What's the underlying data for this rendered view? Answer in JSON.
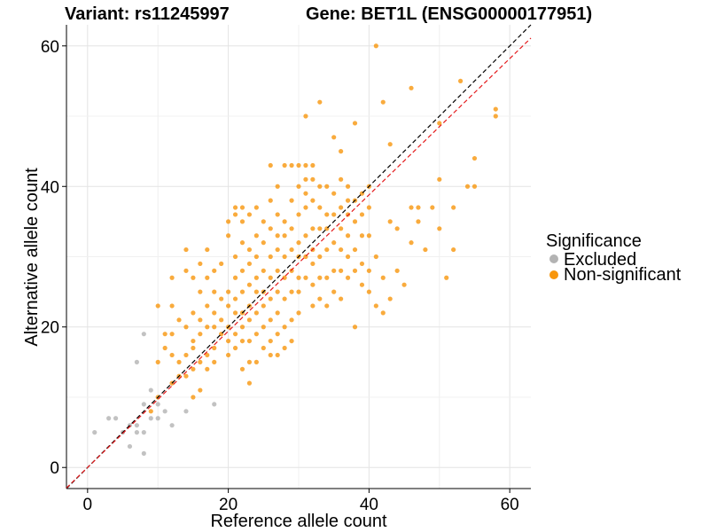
{
  "chart_data": {
    "type": "scatter",
    "title_left": "Variant: rs11245997",
    "title_right": "Gene: BET1L (ENSG00000177951)",
    "xlabel": "Reference allele count",
    "ylabel": "Alternative allele count",
    "xlim": [
      -3,
      63
    ],
    "ylim": [
      -3,
      63
    ],
    "x_ticks": [
      0,
      20,
      40,
      60
    ],
    "y_ticks": [
      0,
      20,
      40,
      60
    ],
    "grid": true,
    "legend_position": "right",
    "legend": {
      "title": "Significance",
      "entries": [
        {
          "label": "Excluded",
          "color": "#b3b3b3"
        },
        {
          "label": "Non-significant",
          "color": "#f8960c"
        }
      ]
    },
    "reference_lines": [
      {
        "name": "identity-line",
        "style": "dashed",
        "color": "#000000",
        "slope": 1.0,
        "intercept": 0
      },
      {
        "name": "fit-line",
        "style": "dashed",
        "color": "#e41a1c",
        "slope": 0.97,
        "intercept": 0
      }
    ],
    "series": [
      {
        "name": "Excluded",
        "color": "#b3b3b3",
        "points": [
          [
            1,
            5
          ],
          [
            3,
            7
          ],
          [
            4,
            7
          ],
          [
            5,
            5
          ],
          [
            6,
            3
          ],
          [
            6,
            6
          ],
          [
            7,
            5
          ],
          [
            7,
            6
          ],
          [
            7,
            15
          ],
          [
            8,
            2
          ],
          [
            8,
            5
          ],
          [
            8,
            9
          ],
          [
            8,
            19
          ],
          [
            9,
            7
          ],
          [
            9,
            11
          ],
          [
            10,
            7
          ],
          [
            10,
            9
          ],
          [
            11,
            8
          ],
          [
            12,
            6
          ],
          [
            14,
            8
          ],
          [
            18,
            9
          ]
        ]
      },
      {
        "name": "Non-significant",
        "color": "#f8960c",
        "points": [
          [
            9,
            8
          ],
          [
            10,
            10
          ],
          [
            10,
            15
          ],
          [
            10,
            23
          ],
          [
            11,
            17
          ],
          [
            11,
            19
          ],
          [
            12,
            12
          ],
          [
            12,
            16
          ],
          [
            12,
            19
          ],
          [
            12,
            23
          ],
          [
            12,
            27
          ],
          [
            13,
            13
          ],
          [
            13,
            15
          ],
          [
            13,
            21
          ],
          [
            14,
            13
          ],
          [
            14,
            16
          ],
          [
            14,
            20
          ],
          [
            14,
            28
          ],
          [
            14,
            31
          ],
          [
            15,
            10
          ],
          [
            15,
            14
          ],
          [
            15,
            17
          ],
          [
            15,
            18
          ],
          [
            15,
            22
          ],
          [
            15,
            27
          ],
          [
            16,
            11
          ],
          [
            16,
            15
          ],
          [
            16,
            19
          ],
          [
            16,
            21
          ],
          [
            16,
            25
          ],
          [
            16,
            29
          ],
          [
            17,
            14
          ],
          [
            17,
            16
          ],
          [
            17,
            20
          ],
          [
            17,
            23
          ],
          [
            17,
            27
          ],
          [
            17,
            31
          ],
          [
            18,
            15
          ],
          [
            18,
            17
          ],
          [
            18,
            20
          ],
          [
            18,
            22
          ],
          [
            18,
            25
          ],
          [
            18,
            28
          ],
          [
            19,
            19
          ],
          [
            19,
            21
          ],
          [
            19,
            24
          ],
          [
            19,
            29
          ],
          [
            20,
            16
          ],
          [
            20,
            18
          ],
          [
            20,
            20
          ],
          [
            20,
            23
          ],
          [
            20,
            25
          ],
          [
            20,
            33
          ],
          [
            20,
            35
          ],
          [
            21,
            17
          ],
          [
            21,
            19
          ],
          [
            21,
            22
          ],
          [
            21,
            24
          ],
          [
            21,
            27
          ],
          [
            21,
            30
          ],
          [
            21,
            36
          ],
          [
            21,
            37
          ],
          [
            22,
            14
          ],
          [
            22,
            18
          ],
          [
            22,
            20
          ],
          [
            22,
            22
          ],
          [
            22,
            25
          ],
          [
            22,
            28
          ],
          [
            22,
            32
          ],
          [
            22,
            35
          ],
          [
            22,
            37
          ],
          [
            23,
            12
          ],
          [
            23,
            15
          ],
          [
            23,
            18
          ],
          [
            23,
            21
          ],
          [
            23,
            23
          ],
          [
            23,
            26
          ],
          [
            23,
            29
          ],
          [
            23,
            31
          ],
          [
            23,
            36
          ],
          [
            24,
            15
          ],
          [
            24,
            19
          ],
          [
            24,
            22
          ],
          [
            24,
            25
          ],
          [
            24,
            27
          ],
          [
            24,
            30
          ],
          [
            24,
            33
          ],
          [
            24,
            37
          ],
          [
            25,
            17
          ],
          [
            25,
            20
          ],
          [
            25,
            23
          ],
          [
            25,
            25
          ],
          [
            25,
            28
          ],
          [
            25,
            32
          ],
          [
            25,
            35
          ],
          [
            26,
            16
          ],
          [
            26,
            18
          ],
          [
            26,
            21
          ],
          [
            26,
            24
          ],
          [
            26,
            27
          ],
          [
            26,
            30
          ],
          [
            26,
            34
          ],
          [
            26,
            38
          ],
          [
            26,
            43
          ],
          [
            27,
            16
          ],
          [
            27,
            19
          ],
          [
            27,
            22
          ],
          [
            27,
            25
          ],
          [
            27,
            28
          ],
          [
            27,
            31
          ],
          [
            27,
            33
          ],
          [
            27,
            36
          ],
          [
            27,
            40
          ],
          [
            28,
            17
          ],
          [
            28,
            20
          ],
          [
            28,
            24
          ],
          [
            28,
            27
          ],
          [
            28,
            30
          ],
          [
            28,
            33
          ],
          [
            28,
            35
          ],
          [
            28,
            43
          ],
          [
            29,
            18
          ],
          [
            29,
            21
          ],
          [
            29,
            25
          ],
          [
            29,
            28
          ],
          [
            29,
            31
          ],
          [
            29,
            34
          ],
          [
            29,
            38
          ],
          [
            29,
            43
          ],
          [
            30,
            22
          ],
          [
            30,
            25
          ],
          [
            30,
            27
          ],
          [
            30,
            30
          ],
          [
            30,
            32
          ],
          [
            30,
            36
          ],
          [
            30,
            40
          ],
          [
            30,
            43
          ],
          [
            31,
            27
          ],
          [
            31,
            30
          ],
          [
            31,
            33
          ],
          [
            31,
            37
          ],
          [
            31,
            39
          ],
          [
            31,
            41
          ],
          [
            31,
            43
          ],
          [
            31,
            50
          ],
          [
            32,
            23
          ],
          [
            32,
            26
          ],
          [
            32,
            29
          ],
          [
            32,
            31
          ],
          [
            32,
            34
          ],
          [
            32,
            38
          ],
          [
            32,
            41
          ],
          [
            32,
            43
          ],
          [
            33,
            24
          ],
          [
            33,
            27
          ],
          [
            33,
            30
          ],
          [
            33,
            34
          ],
          [
            33,
            37
          ],
          [
            33,
            40
          ],
          [
            33,
            52
          ],
          [
            34,
            23
          ],
          [
            34,
            27
          ],
          [
            34,
            31
          ],
          [
            34,
            34
          ],
          [
            34,
            36
          ],
          [
            34,
            40
          ],
          [
            35,
            25
          ],
          [
            35,
            28
          ],
          [
            35,
            32
          ],
          [
            35,
            36
          ],
          [
            35,
            39
          ],
          [
            35,
            47
          ],
          [
            36,
            24
          ],
          [
            36,
            28
          ],
          [
            36,
            31
          ],
          [
            36,
            34
          ],
          [
            36,
            37
          ],
          [
            36,
            41
          ],
          [
            36,
            45
          ],
          [
            37,
            27
          ],
          [
            37,
            30
          ],
          [
            37,
            33
          ],
          [
            37,
            36
          ],
          [
            37,
            38
          ],
          [
            37,
            40
          ],
          [
            38,
            20
          ],
          [
            38,
            28
          ],
          [
            38,
            31
          ],
          [
            38,
            35
          ],
          [
            38,
            38
          ],
          [
            38,
            49
          ],
          [
            39,
            26
          ],
          [
            39,
            29
          ],
          [
            39,
            33
          ],
          [
            39,
            36
          ],
          [
            39,
            39
          ],
          [
            40,
            25
          ],
          [
            40,
            28
          ],
          [
            40,
            33
          ],
          [
            40,
            37
          ],
          [
            40,
            40
          ],
          [
            41,
            23
          ],
          [
            41,
            30
          ],
          [
            41,
            60
          ],
          [
            42,
            22
          ],
          [
            42,
            27
          ],
          [
            42,
            52
          ],
          [
            43,
            24
          ],
          [
            43,
            35
          ],
          [
            43,
            46
          ],
          [
            44,
            28
          ],
          [
            44,
            34
          ],
          [
            45,
            26
          ],
          [
            46,
            32
          ],
          [
            46,
            37
          ],
          [
            46,
            54
          ],
          [
            47,
            35
          ],
          [
            47,
            37
          ],
          [
            48,
            31
          ],
          [
            49,
            37
          ],
          [
            50,
            34
          ],
          [
            50,
            41
          ],
          [
            50,
            49
          ],
          [
            51,
            27
          ],
          [
            52,
            31
          ],
          [
            52,
            37
          ],
          [
            53,
            55
          ],
          [
            54,
            40
          ],
          [
            55,
            40
          ],
          [
            55,
            44
          ],
          [
            58,
            50
          ],
          [
            58,
            51
          ]
        ]
      }
    ]
  }
}
